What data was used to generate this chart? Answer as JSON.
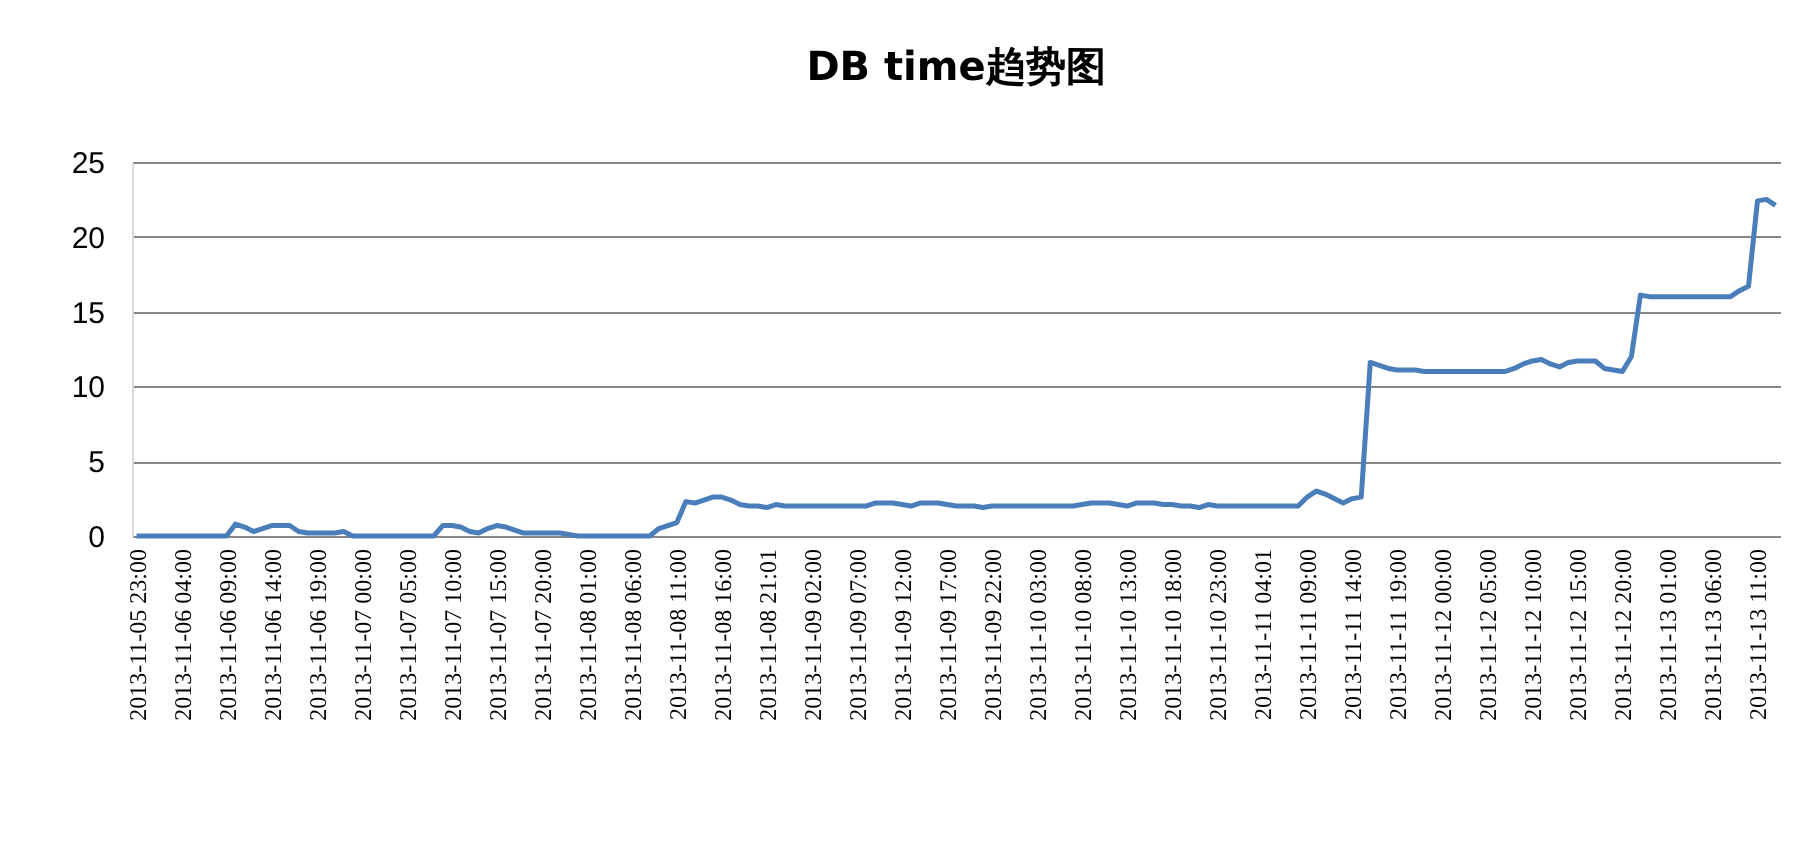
{
  "chart_data": {
    "type": "line",
    "title": "DB time趋势图",
    "categories": [
      "2013-11-05 23:00",
      null,
      null,
      null,
      null,
      "2013-11-06 04:00",
      null,
      null,
      null,
      null,
      "2013-11-06 09:00",
      null,
      null,
      null,
      null,
      "2013-11-06 14:00",
      null,
      null,
      null,
      null,
      "2013-11-06 19:00",
      null,
      null,
      null,
      null,
      "2013-11-07 00:00",
      null,
      null,
      null,
      null,
      "2013-11-07 05:00",
      null,
      null,
      null,
      null,
      "2013-11-07 10:00",
      null,
      null,
      null,
      null,
      "2013-11-07 15:00",
      null,
      null,
      null,
      null,
      "2013-11-07 20:00",
      null,
      null,
      null,
      null,
      "2013-11-08 01:00",
      null,
      null,
      null,
      null,
      "2013-11-08 06:00",
      null,
      null,
      null,
      null,
      "2013-11-08 11:00",
      null,
      null,
      null,
      null,
      "2013-11-08 16:00",
      null,
      null,
      null,
      null,
      "2013-11-08 21:01",
      null,
      null,
      null,
      null,
      "2013-11-09 02:00",
      null,
      null,
      null,
      null,
      "2013-11-09 07:00",
      null,
      null,
      null,
      null,
      "2013-11-09 12:00",
      null,
      null,
      null,
      null,
      "2013-11-09 17:00",
      null,
      null,
      null,
      null,
      "2013-11-09 22:00",
      null,
      null,
      null,
      null,
      "2013-11-10 03:00",
      null,
      null,
      null,
      null,
      "2013-11-10 08:00",
      null,
      null,
      null,
      null,
      "2013-11-10 13:00",
      null,
      null,
      null,
      null,
      "2013-11-10 18:00",
      null,
      null,
      null,
      null,
      "2013-11-10 23:00",
      null,
      null,
      null,
      null,
      "2013-11-11 04:01",
      null,
      null,
      null,
      null,
      "2013-11-11 09:00",
      null,
      null,
      null,
      null,
      "2013-11-11 14:00",
      null,
      null,
      null,
      null,
      "2013-11-11 19:00",
      null,
      null,
      null,
      null,
      "2013-11-12 00:00",
      null,
      null,
      null,
      null,
      "2013-11-12 05:00",
      null,
      null,
      null,
      null,
      "2013-11-12 10:00",
      null,
      null,
      null,
      null,
      "2013-11-12 15:00",
      null,
      null,
      null,
      null,
      "2013-11-12 20:00",
      null,
      null,
      null,
      null,
      "2013-11-13 01:00",
      null,
      null,
      null,
      null,
      "2013-11-13 06:00",
      null,
      null,
      null,
      null,
      "2013-11-13 11:00",
      null,
      null
    ],
    "series": [
      {
        "color": "#4a7ebb",
        "values": [
          0,
          0,
          0,
          0,
          0,
          0,
          0,
          0,
          0,
          0,
          0,
          0.8,
          0.6,
          0.3,
          0.5,
          0.7,
          0.7,
          0.7,
          0.3,
          0.2,
          0.2,
          0.2,
          0.2,
          0.3,
          0,
          0,
          0,
          0,
          0,
          0,
          0,
          0,
          0,
          0,
          0.7,
          0.7,
          0.6,
          0.3,
          0.2,
          0.5,
          0.7,
          0.6,
          0.4,
          0.2,
          0.2,
          0.2,
          0.2,
          0.2,
          0.1,
          0,
          0,
          0,
          0,
          0,
          0,
          0,
          0,
          0,
          0.5,
          0.7,
          0.9,
          2.3,
          2.2,
          2.4,
          2.6,
          2.6,
          2.4,
          2.1,
          2.0,
          2.0,
          1.9,
          2.1,
          2.0,
          2.0,
          2.0,
          2.0,
          2.0,
          2.0,
          2.0,
          2.0,
          2.0,
          2.0,
          2.2,
          2.2,
          2.2,
          2.1,
          2.0,
          2.2,
          2.2,
          2.2,
          2.1,
          2.0,
          2.0,
          2.0,
          1.9,
          2.0,
          2.0,
          2.0,
          2.0,
          2.0,
          2.0,
          2.0,
          2.0,
          2.0,
          2.0,
          2.1,
          2.2,
          2.2,
          2.2,
          2.1,
          2.0,
          2.2,
          2.2,
          2.2,
          2.1,
          2.1,
          2.0,
          2.0,
          1.9,
          2.1,
          2.0,
          2.0,
          2.0,
          2.0,
          2.0,
          2.0,
          2.0,
          2.0,
          2.0,
          2.0,
          2.6,
          3.0,
          2.8,
          2.5,
          2.2,
          2.5,
          2.6,
          11.6,
          11.4,
          11.2,
          11.1,
          11.1,
          11.1,
          11.0,
          11.0,
          11.0,
          11.0,
          11.0,
          11.0,
          11.0,
          11.0,
          11.0,
          11.0,
          11.2,
          11.5,
          11.7,
          11.8,
          11.5,
          11.3,
          11.6,
          11.7,
          11.7,
          11.7,
          11.2,
          11.1,
          11.0,
          12.0,
          16.1,
          16.0,
          16.0,
          16.0,
          16.0,
          16.0,
          16.0,
          16.0,
          16.0,
          16.0,
          16.0,
          16.4,
          16.7,
          22.4,
          22.5,
          22.1
        ]
      }
    ],
    "ylim": [
      0,
      25
    ],
    "yticks": [
      0,
      5,
      10,
      15,
      20,
      25
    ],
    "grid": "y",
    "marker": "none",
    "line_style": "solid"
  }
}
